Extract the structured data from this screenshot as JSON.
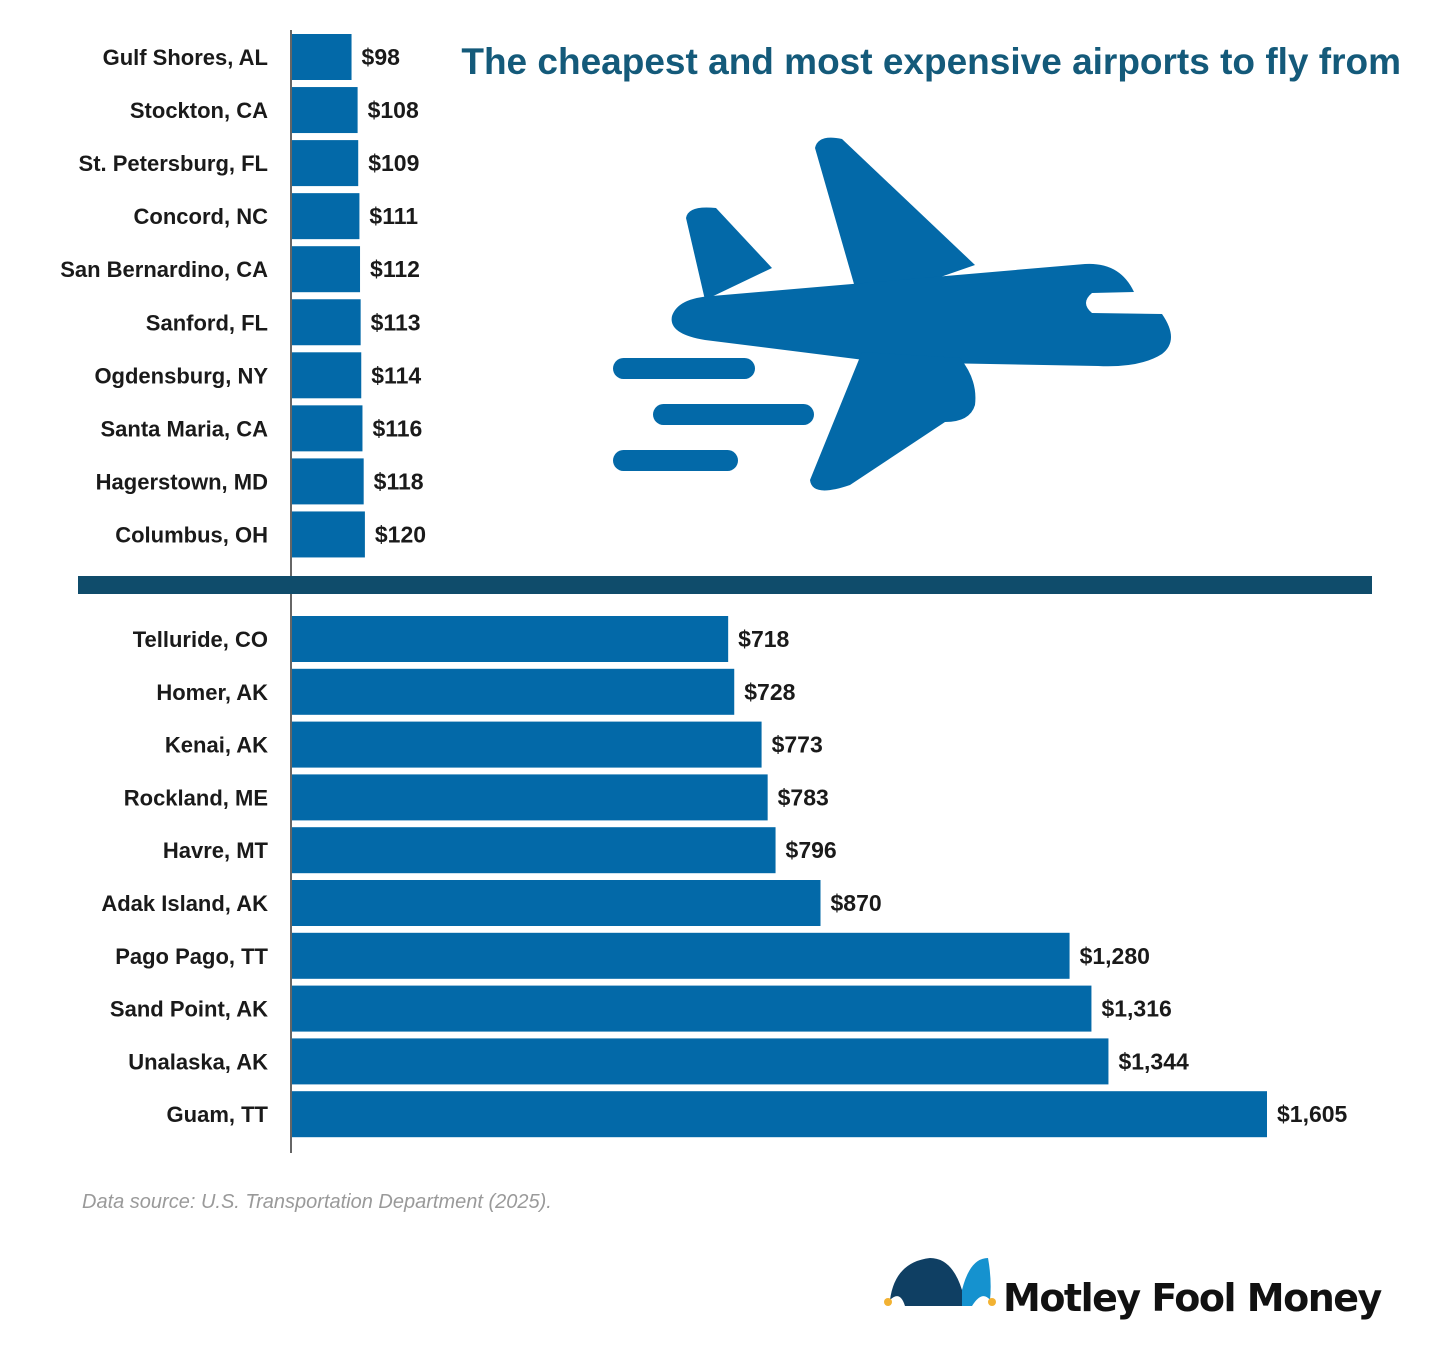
{
  "title": "The cheapest and most expensive airports to fly from",
  "source": "Data source: U.S. Transportation Department (2025).",
  "logo_text": "Motley Fool Money",
  "colors": {
    "bar": "#0369a8",
    "title": "#145a7a",
    "divider": "#0f4c6b",
    "plane": "#0369a8"
  },
  "icon": "airplane-icon",
  "chart_data": [
    {
      "type": "bar",
      "orientation": "horizontal",
      "title": "",
      "categories": [
        "Gulf Shores, AL",
        "Stockton, CA",
        "St. Petersburg, FL",
        "Concord, NC",
        "San Bernardino, CA",
        "Sanford, FL",
        "Ogdensburg, NY",
        "Santa Maria, CA",
        "Hagerstown, MD",
        "Columbus, OH"
      ],
      "values": [
        98,
        108,
        109,
        111,
        112,
        113,
        114,
        116,
        118,
        120
      ],
      "labels": [
        "$98",
        "$108",
        "$109",
        "$111",
        "$112",
        "$113",
        "$114",
        "$116",
        "$118",
        "$120"
      ],
      "xlim": [
        0,
        1605
      ],
      "grid": false
    },
    {
      "type": "bar",
      "orientation": "horizontal",
      "title": "",
      "categories": [
        "Telluride, CO",
        "Homer, AK",
        "Kenai, AK",
        "Rockland, ME",
        "Havre, MT",
        "Adak Island, AK",
        "Pago Pago, TT",
        "Sand Point, AK",
        "Unalaska, AK",
        "Guam, TT"
      ],
      "values": [
        718,
        728,
        773,
        783,
        796,
        870,
        1280,
        1316,
        1344,
        1605
      ],
      "labels": [
        "$718",
        "$728",
        "$773",
        "$783",
        "$796",
        "$870",
        "$1,280",
        "$1,316",
        "$1,344",
        "$1,605"
      ],
      "xlim": [
        0,
        1605
      ],
      "grid": false
    }
  ]
}
